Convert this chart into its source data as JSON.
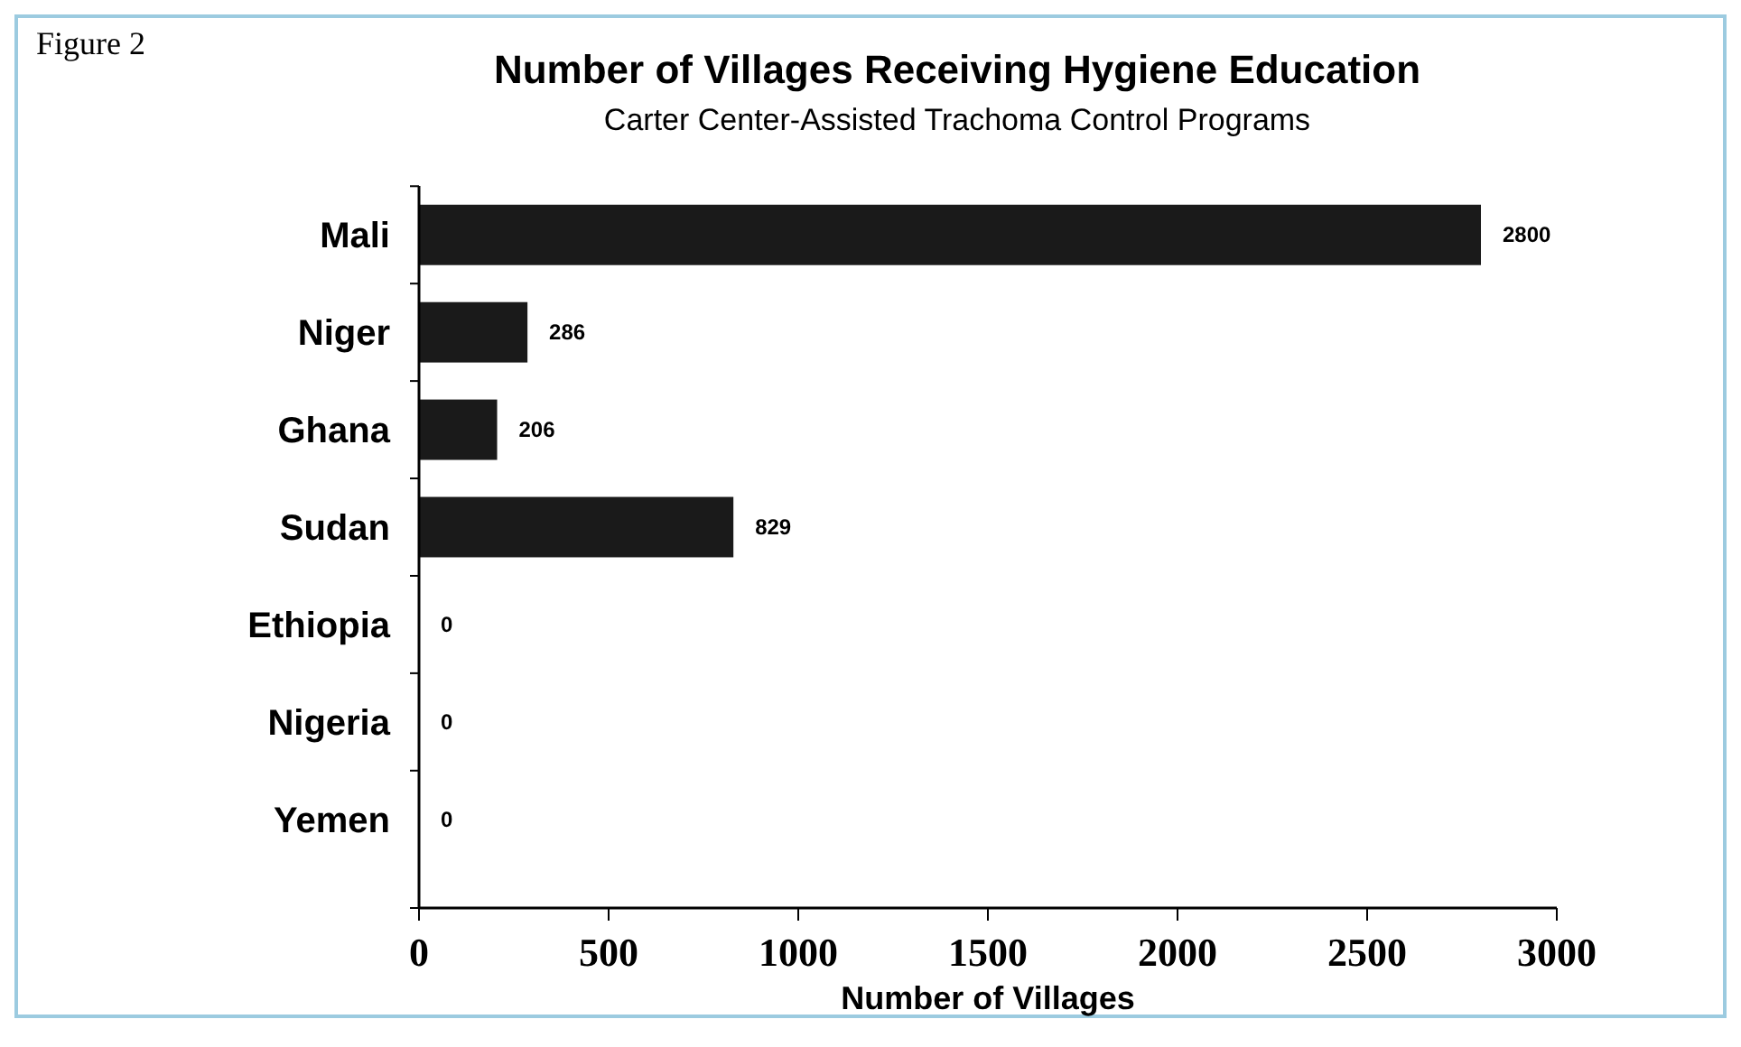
{
  "chart_data": {
    "type": "bar",
    "orientation": "horizontal",
    "title": "Number of Villages Receiving Hygiene Education",
    "subtitle": "Carter Center-Assisted Trachoma Control Programs",
    "xlabel": "Number of Villages",
    "annotations": [
      "Figure 2"
    ],
    "categories": [
      "Mali",
      "Niger",
      "Ghana",
      "Sudan",
      "Ethiopia",
      "Nigeria",
      "Yemen"
    ],
    "values": [
      2800,
      286,
      206,
      829,
      0,
      0,
      0
    ],
    "color": "#1a1a1a",
    "data_labels": true,
    "xlim": [
      0,
      3000
    ],
    "xticks": [
      0,
      500,
      1000,
      1500,
      2000,
      2500,
      3000
    ],
    "grid": false
  }
}
